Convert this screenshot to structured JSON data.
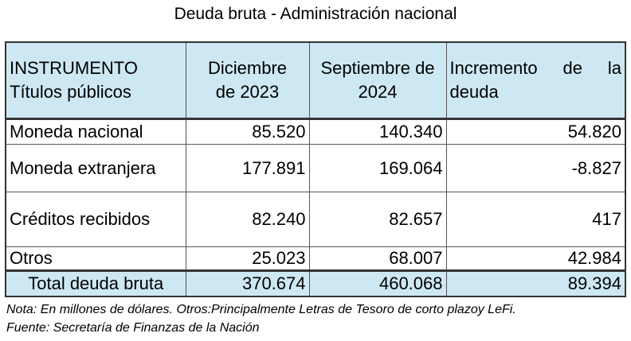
{
  "title": "Deuda bruta - Administración nacional",
  "header": {
    "col1_line1": "INSTRUMENTO",
    "col1_line2": "Títulos públicos",
    "col2_line1": "Diciembre",
    "col2_line2": "de 2023",
    "col3_line1": "Septiembre de",
    "col3_line2": "2024",
    "col4_w1": "Incremento",
    "col4_w2": "de",
    "col4_w3": "la",
    "col4_line2": "deuda"
  },
  "rows": [
    {
      "label": "Moneda nacional",
      "dic2023": "85.520",
      "sep2024": "140.340",
      "incremento": "54.820"
    },
    {
      "label": "Moneda extranjera",
      "dic2023": "177.891",
      "sep2024": "169.064",
      "incremento": "-8.827"
    },
    {
      "label": "Créditos recibidos",
      "dic2023": "82.240",
      "sep2024": "82.657",
      "incremento": "417"
    },
    {
      "label": "Otros",
      "dic2023": "25.023",
      "sep2024": "68.007",
      "incremento": "42.984"
    }
  ],
  "total": {
    "label": "Total deuda bruta",
    "dic2023": "370.674",
    "sep2024": "460.068",
    "incremento": "89.394"
  },
  "notes": {
    "nota": "Nota: En millones de dólares. Otros:Principalmente Letras de Tesoro de corto plazoy LeFi.",
    "fuente": "Fuente: Secretaría de Finanzas de la Nación"
  },
  "colors": {
    "header_bg": "#cde8f3",
    "border": "#333333"
  }
}
